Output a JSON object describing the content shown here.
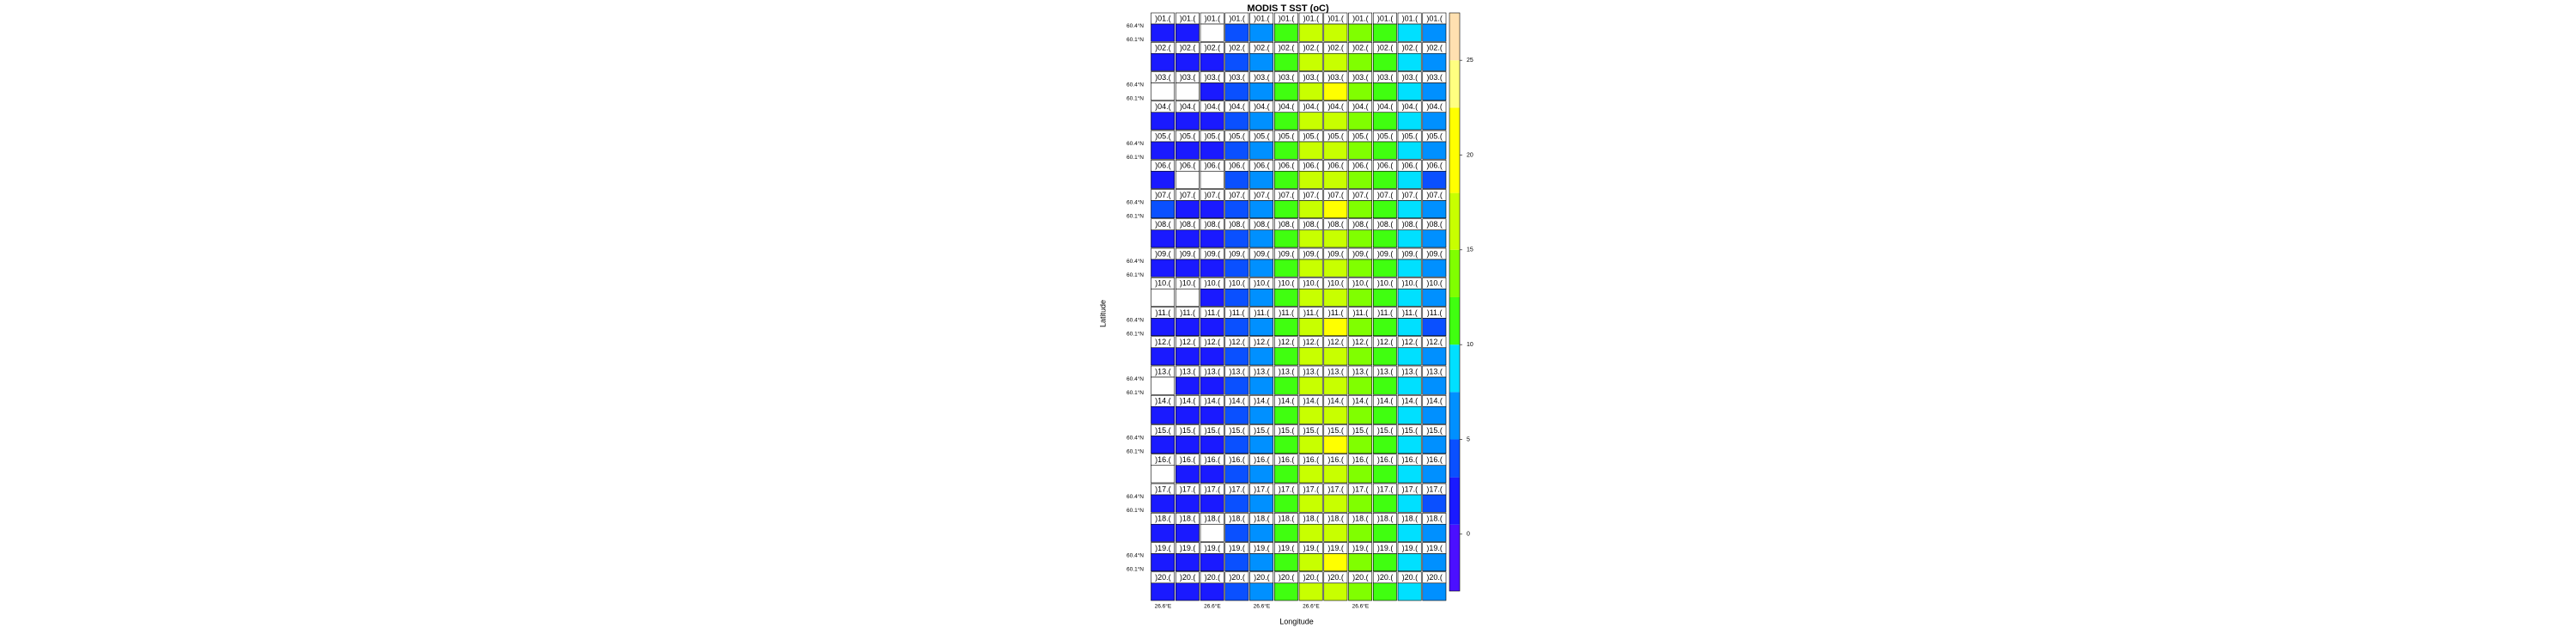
{
  "chart_data": {
    "type": "panel-heatmap",
    "title": "MODIS T SST (oC)",
    "x_label": "Longitude",
    "y_label": "Latitude",
    "lat_labels": [
      "60.4°N",
      "60.1°N"
    ],
    "lon_label": "26.6°E",
    "strip_labels": [
      ")01.(",
      ")02.(",
      ")03.(",
      ")04.(",
      ")05.(",
      ")06.(",
      ")07.(",
      ")08.(",
      ")09.(",
      ")10.(",
      ")11.(",
      ")12.(",
      ")13.(",
      ")14.(",
      ")15.(",
      ")16.(",
      ")17.(",
      ")18.(",
      ")19.(",
      ")20.("
    ],
    "values": [
      [
        2.5,
        2.0,
        null,
        3.5,
        6.5,
        11,
        16,
        17,
        13,
        11,
        8,
        5
      ],
      [
        2.0,
        2.5,
        1.5,
        3.0,
        7.0,
        12,
        16,
        17,
        14,
        12,
        8,
        5
      ],
      [
        null,
        null,
        1.5,
        3.5,
        6.5,
        11,
        17,
        18,
        14,
        12,
        9,
        5
      ],
      [
        2.5,
        2.5,
        2.0,
        4.0,
        7.0,
        11,
        16,
        17,
        14,
        11,
        8,
        5
      ],
      [
        2.5,
        2.0,
        1.5,
        3.5,
        6.5,
        12,
        16,
        17,
        13,
        12,
        8,
        5
      ],
      [
        2.0,
        null,
        null,
        3.5,
        7.0,
        11,
        17,
        17,
        14,
        12,
        9,
        4.5
      ],
      [
        3.0,
        2.5,
        2.0,
        3.5,
        6.5,
        11,
        16,
        18,
        14,
        11,
        8,
        5
      ],
      [
        2.5,
        2.5,
        1.5,
        4.0,
        7.0,
        12,
        16,
        17,
        13,
        12,
        8,
        5
      ],
      [
        2.5,
        2.0,
        2.0,
        3.5,
        6.5,
        11,
        17,
        17,
        14,
        12,
        8,
        5
      ],
      [
        null,
        null,
        1.5,
        3.5,
        7.0,
        11,
        16,
        17,
        14,
        11,
        9,
        5
      ],
      [
        2.5,
        2.5,
        2.0,
        3.5,
        6.5,
        12,
        16,
        18,
        13,
        12,
        8,
        4.5
      ],
      [
        2.0,
        2.5,
        1.5,
        4.0,
        7.0,
        11,
        16,
        17,
        14,
        12,
        8,
        5
      ],
      [
        null,
        2.0,
        1.5,
        3.5,
        6.5,
        11,
        17,
        17,
        14,
        11,
        8,
        5
      ],
      [
        2.5,
        2.5,
        2.0,
        3.5,
        7.0,
        12,
        16,
        17,
        13,
        12,
        9,
        5
      ],
      [
        2.5,
        2.0,
        1.5,
        3.5,
        6.5,
        11,
        16,
        18,
        14,
        12,
        8,
        5
      ],
      [
        null,
        2.5,
        2.0,
        4.0,
        7.0,
        11,
        17,
        17,
        14,
        11,
        8,
        5
      ],
      [
        2.5,
        2.5,
        1.5,
        3.5,
        6.5,
        12,
        16,
        17,
        13,
        12,
        8,
        4.5
      ],
      [
        2.0,
        2.0,
        null,
        3.5,
        7.0,
        11,
        16,
        17,
        14,
        12,
        9,
        5
      ],
      [
        2.5,
        2.5,
        2.0,
        3.5,
        6.5,
        11,
        17,
        18,
        14,
        11,
        8,
        5
      ],
      [
        2.5,
        2.5,
        1.5,
        4.0,
        7.0,
        12,
        16,
        17,
        13,
        12,
        8,
        5
      ]
    ],
    "zlim": [
      -3,
      27.5
    ],
    "zticks": [
      0,
      5,
      10,
      15,
      20,
      25
    ],
    "breaks": [
      -3,
      0.5,
      3,
      5,
      7.5,
      10,
      12.5,
      15,
      18,
      22.5,
      25,
      27.5
    ],
    "colors": [
      "#4b0fff",
      "#1a1aff",
      "#0a50ff",
      "#0090ff",
      "#00e0ff",
      "#40ff10",
      "#80ff00",
      "#c8ff00",
      "#ffff00",
      "#ffff80",
      "#ffe0b0"
    ]
  }
}
